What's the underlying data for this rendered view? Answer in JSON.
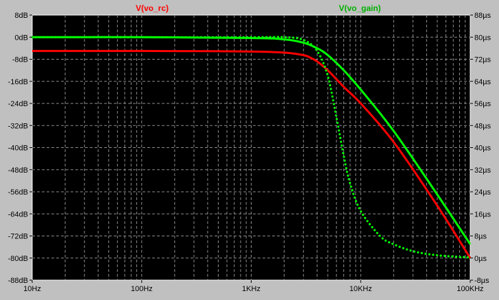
{
  "chart_data": {
    "type": "line",
    "title": "",
    "x_scale": "log",
    "xlim": [
      10,
      100000
    ],
    "x_ticks": [
      {
        "value": 10,
        "label": "10Hz"
      },
      {
        "value": 100,
        "label": "100Hz"
      },
      {
        "value": 1000,
        "label": "1KHz"
      },
      {
        "value": 10000,
        "label": "10KHz"
      },
      {
        "value": 100000,
        "label": "100KHz"
      }
    ],
    "y_left": {
      "unit": "dB",
      "lim": [
        -88,
        8
      ],
      "ticks": [
        8,
        0,
        -8,
        -16,
        -24,
        -32,
        -40,
        -48,
        -56,
        -64,
        -72,
        -80,
        -88
      ],
      "labels": [
        "8dB",
        "0dB",
        "-8dB",
        "-16dB",
        "-24dB",
        "-32dB",
        "-40dB",
        "-48dB",
        "-56dB",
        "-64dB",
        "-72dB",
        "-80dB",
        "-88dB"
      ]
    },
    "y_right": {
      "unit": "µs",
      "lim": [
        -8,
        88
      ],
      "ticks": [
        88,
        80,
        72,
        64,
        56,
        48,
        40,
        32,
        24,
        16,
        8,
        0,
        -8
      ],
      "labels": [
        "88µs",
        "80µs",
        "72µs",
        "64µs",
        "56µs",
        "48µs",
        "40µs",
        "32µs",
        "24µs",
        "16µs",
        "8µs",
        "0µs",
        "-8µs"
      ]
    },
    "grid": true,
    "legend": [
      {
        "label": "V(vo_rc)",
        "color": "#ff0000"
      },
      {
        "label": "V(vo_gain)",
        "color": "#00ff00"
      }
    ],
    "series": [
      {
        "name": "V(vo_rc)",
        "color": "#ff0000",
        "style": "solid",
        "axis": "left",
        "x": [
          10,
          100,
          500,
          1000,
          2000,
          3000,
          3500,
          4000,
          5000,
          7000,
          10000,
          20000,
          50000,
          100000
        ],
        "y": [
          -5,
          -5,
          -5.1,
          -5.2,
          -5.6,
          -6.5,
          -7.5,
          -8.8,
          -12,
          -18,
          -24,
          -38,
          -61,
          -80
        ]
      },
      {
        "name": "V(vo_gain) magnitude",
        "color": "#00ff00",
        "style": "solid",
        "axis": "left",
        "x": [
          10,
          100,
          1000,
          2000,
          3000,
          4000,
          5000,
          7000,
          10000,
          20000,
          50000,
          100000
        ],
        "y": [
          0,
          0,
          -0.3,
          -0.8,
          -2,
          -4,
          -6.5,
          -12,
          -19,
          -34,
          -57,
          -75
        ]
      },
      {
        "name": "V(vo_gain) group delay",
        "color": "#00ff00",
        "style": "dotted",
        "axis": "right",
        "x": [
          10,
          100,
          1000,
          2000,
          3000,
          4000,
          5000,
          6000,
          7000,
          8000,
          10000,
          15000,
          20000,
          30000,
          50000,
          100000
        ],
        "y": [
          80,
          80,
          80,
          80,
          79,
          75,
          66,
          51,
          37,
          27,
          17,
          8,
          5,
          2.5,
          1,
          0.2
        ]
      }
    ]
  }
}
